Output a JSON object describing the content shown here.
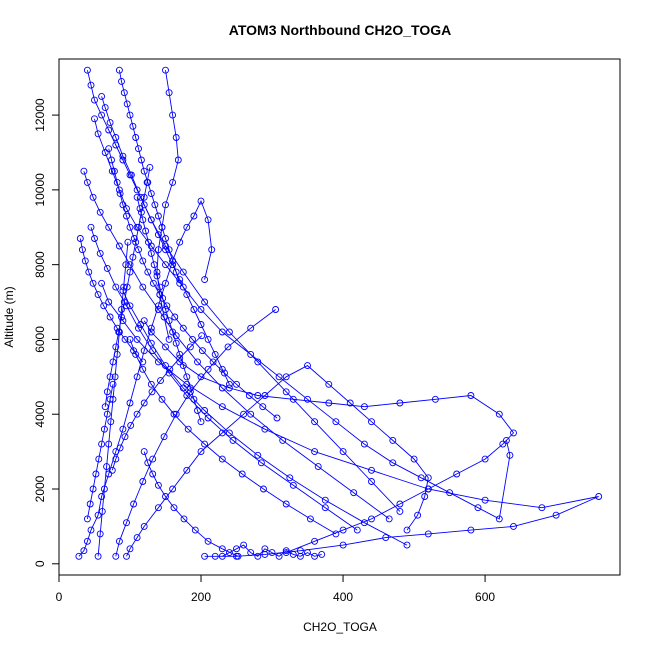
{
  "chart_data": {
    "type": "scatter",
    "title": "ATOM3 Northbound CH2O_TOGA",
    "xlabel": "CH2O_TOGA",
    "ylabel": "Altitude (m)",
    "xlim": [
      0,
      790
    ],
    "ylim": [
      -300,
      13500
    ],
    "x_ticks": [
      0,
      200,
      400,
      600
    ],
    "y_ticks": [
      0,
      2000,
      4000,
      6000,
      8000,
      10000,
      12000
    ],
    "grid": false,
    "legend": "none",
    "marker": "open-circle",
    "series_color": "#0000ff",
    "series": [
      {
        "x": [
          28,
          35,
          40,
          45,
          55,
          60,
          70,
          80,
          90,
          100,
          110,
          120,
          130,
          140,
          150,
          160,
          170,
          180,
          190,
          200,
          210,
          215,
          205
        ],
        "y": [
          200,
          350,
          600,
          900,
          1300,
          1800,
          2400,
          3000,
          3600,
          4300,
          5000,
          5700,
          6300,
          6900,
          7500,
          8100,
          8600,
          9000,
          9300,
          9700,
          9200,
          8400,
          7600
        ]
      },
      {
        "x": [
          95,
          100,
          110,
          120,
          140,
          160,
          180,
          200,
          230,
          260,
          290,
          320,
          350,
          380,
          410,
          440,
          470,
          500,
          520,
          515,
          505,
          490
        ],
        "y": [
          200,
          400,
          700,
          1000,
          1500,
          2000,
          2500,
          3000,
          3500,
          4000,
          4500,
          5000,
          5300,
          4800,
          4300,
          3800,
          3300,
          2800,
          2300,
          1800,
          1300,
          900
        ]
      },
      {
        "x": [
          120,
          130,
          150,
          170,
          200,
          240,
          280,
          330,
          380,
          430,
          480,
          530,
          580,
          620,
          640,
          625,
          600,
          560,
          520,
          480,
          440,
          400,
          360,
          320
        ],
        "y": [
          6500,
          6200,
          5800,
          5400,
          5000,
          4700,
          4500,
          4400,
          4300,
          4200,
          4300,
          4400,
          4500,
          4000,
          3500,
          3200,
          2800,
          2400,
          2000,
          1600,
          1200,
          900,
          600,
          300
        ]
      },
      {
        "x": [
          60,
          70,
          90,
          110,
          140,
          180,
          230,
          290,
          360,
          440,
          520,
          600,
          680,
          760,
          700,
          640,
          580,
          520,
          460,
          400,
          340,
          290,
          250,
          220,
          205
        ],
        "y": [
          7500,
          7000,
          6500,
          6000,
          5400,
          4800,
          4200,
          3600,
          3000,
          2500,
          2000,
          1700,
          1500,
          1800,
          1300,
          1000,
          900,
          800,
          700,
          500,
          350,
          250,
          200,
          200,
          200
        ]
      },
      {
        "x": [
          50,
          55,
          65,
          75,
          85,
          95,
          110,
          130,
          150,
          175,
          200,
          230,
          270,
          310,
          350,
          390,
          430,
          470,
          510,
          550,
          590,
          620,
          635,
          630
        ],
        "y": [
          11900,
          11500,
          11000,
          10500,
          10000,
          9500,
          9000,
          8500,
          8000,
          7400,
          6800,
          6200,
          5600,
          5000,
          4400,
          3800,
          3200,
          2700,
          2300,
          1900,
          1500,
          1200,
          2900,
          3300
        ]
      },
      {
        "x": [
          40,
          45,
          50,
          60,
          70,
          80,
          90,
          100,
          110,
          120,
          130,
          140,
          150,
          160,
          170,
          180,
          190,
          200,
          210,
          220,
          230,
          240
        ],
        "y": [
          13200,
          12800,
          12400,
          12000,
          11600,
          11200,
          10800,
          10400,
          10000,
          9600,
          9200,
          8800,
          8400,
          8000,
          7600,
          7200,
          6800,
          6400,
          6000,
          5600,
          5200,
          4800
        ]
      },
      {
        "x": [
          35,
          40,
          48,
          58,
          70,
          85,
          100,
          118,
          140,
          165,
          195,
          230,
          270,
          315,
          365,
          415,
          465
        ],
        "y": [
          10500,
          10200,
          9800,
          9400,
          9000,
          8500,
          8000,
          7400,
          6800,
          6100,
          5400,
          4700,
          4000,
          3300,
          2600,
          1900,
          1200
        ]
      },
      {
        "x": [
          45,
          50,
          58,
          68,
          80,
          95,
          112,
          132,
          155,
          180,
          210,
          245,
          285,
          330,
          375,
          420
        ],
        "y": [
          9000,
          8700,
          8300,
          7900,
          7400,
          6900,
          6300,
          5700,
          5100,
          4500,
          3900,
          3300,
          2700,
          2100,
          1500,
          900
        ]
      },
      {
        "x": [
          60,
          65,
          72,
          80,
          90,
          102,
          115,
          130,
          150,
          175,
          205,
          240,
          280,
          320,
          360,
          400,
          440,
          480
        ],
        "y": [
          12500,
          12200,
          11800,
          11400,
          10900,
          10400,
          9800,
          9200,
          8500,
          7800,
          7000,
          6200,
          5400,
          4600,
          3800,
          3000,
          2200,
          1400
        ]
      },
      {
        "x": [
          80,
          85,
          95,
          105,
          118,
          132,
          148,
          165,
          185,
          210,
          238,
          270,
          305
        ],
        "y": [
          200,
          600,
          1100,
          1600,
          2200,
          2800,
          3400,
          4000,
          4600,
          5200,
          5800,
          6300,
          6800
        ]
      },
      {
        "x": [
          85,
          88,
          92,
          96,
          100,
          104,
          108,
          112,
          116,
          120,
          125,
          130,
          135,
          140,
          145,
          150,
          155,
          160,
          165,
          170
        ],
        "y": [
          13200,
          12900,
          12600,
          12300,
          12000,
          11700,
          11400,
          11100,
          10800,
          10500,
          10200,
          9900,
          9600,
          9300,
          9000,
          8700,
          8400,
          8100,
          7800,
          7500
        ]
      },
      {
        "x": [
          70,
          74,
          78,
          82,
          86,
          90,
          95,
          100,
          106,
          112,
          118,
          125,
          133,
          142,
          152,
          163,
          175,
          188,
          202,
          217,
          233,
          250,
          268,
          287,
          307
        ],
        "y": [
          11100,
          10800,
          10500,
          10200,
          9900,
          9600,
          9300,
          9000,
          8700,
          8400,
          8100,
          7800,
          7500,
          7200,
          6900,
          6600,
          6300,
          6000,
          5700,
          5400,
          5100,
          4800,
          4500,
          4200,
          3900
        ]
      },
      {
        "x": [
          110,
          114,
          118,
          122,
          126,
          130,
          134,
          138,
          142,
          146,
          150,
          155,
          160,
          165,
          170,
          175,
          180,
          185,
          190,
          195,
          200
        ],
        "y": [
          9800,
          9500,
          9200,
          8900,
          8600,
          8300,
          8000,
          7700,
          7400,
          7100,
          6800,
          6500,
          6200,
          5900,
          5600,
          5300,
          5000,
          4700,
          4400,
          4100,
          3800
        ]
      },
      {
        "x": [
          55,
          58,
          61,
          64,
          67,
          70,
          73,
          76,
          79,
          82,
          85,
          88,
          91,
          94,
          97
        ],
        "y": [
          200,
          800,
          1400,
          2000,
          2600,
          3200,
          3800,
          4400,
          5000,
          5600,
          6200,
          6800,
          7400,
          8000,
          8600
        ]
      },
      {
        "x": [
          65,
          68,
          72,
          76,
          80,
          84,
          88,
          92,
          96,
          100,
          104,
          108,
          112,
          116,
          120,
          124,
          128
        ],
        "y": [
          4200,
          4600,
          5000,
          5400,
          5800,
          6200,
          6600,
          7000,
          7400,
          7800,
          8200,
          8600,
          9000,
          9400,
          9800,
          10200,
          10600
        ]
      },
      {
        "x": [
          150,
          155,
          160,
          165,
          168,
          160,
          150,
          145,
          140,
          138,
          142,
          148,
          155
        ],
        "y": [
          13200,
          12600,
          12000,
          11400,
          10800,
          10200,
          9600,
          9000,
          8400,
          7800,
          7200,
          6600,
          6000
        ]
      },
      {
        "x": [
          90,
          100,
          115,
          130,
          150,
          175,
          205,
          240,
          280,
          325,
          375,
          430,
          490
        ],
        "y": [
          7300,
          6900,
          6400,
          5900,
          5300,
          4700,
          4100,
          3500,
          2900,
          2300,
          1700,
          1100,
          500
        ]
      },
      {
        "x": [
          100,
          108,
          118,
          130,
          145,
          162,
          182,
          205,
          230,
          258,
          288,
          320,
          354,
          390
        ],
        "y": [
          6000,
          5600,
          5200,
          4800,
          4400,
          4000,
          3600,
          3200,
          2800,
          2400,
          2000,
          1600,
          1200,
          800
        ]
      },
      {
        "x": [
          230,
          240,
          250,
          260,
          270,
          280,
          290,
          300,
          310,
          320,
          330,
          340,
          350,
          360,
          370
        ],
        "y": [
          200,
          300,
          400,
          500,
          300,
          200,
          400,
          300,
          200,
          350,
          250,
          200,
          300,
          200,
          250
        ]
      },
      {
        "x": [
          120,
          125,
          132,
          140,
          150,
          162,
          176,
          192,
          210,
          230,
          252
        ],
        "y": [
          3000,
          2700,
          2400,
          2100,
          1800,
          1500,
          1200,
          900,
          600,
          400,
          200
        ]
      },
      {
        "x": [
          75,
          80,
          86,
          93,
          101,
          110,
          120,
          131,
          143,
          156,
          170,
          185,
          201
        ],
        "y": [
          2500,
          2800,
          3100,
          3400,
          3700,
          4000,
          4300,
          4600,
          4900,
          5200,
          5500,
          5800,
          6100
        ]
      },
      {
        "x": [
          40,
          44,
          48,
          52,
          56,
          60,
          64,
          68,
          72,
          76
        ],
        "y": [
          1200,
          1600,
          2000,
          2400,
          2800,
          3200,
          3600,
          4000,
          4400,
          4800
        ]
      },
      {
        "x": [
          30,
          33,
          37,
          42,
          48,
          55,
          63,
          72,
          82,
          93,
          105,
          118
        ],
        "y": [
          8700,
          8400,
          8100,
          7800,
          7500,
          7200,
          6900,
          6600,
          6300,
          6000,
          5700,
          5400
        ]
      }
    ]
  }
}
